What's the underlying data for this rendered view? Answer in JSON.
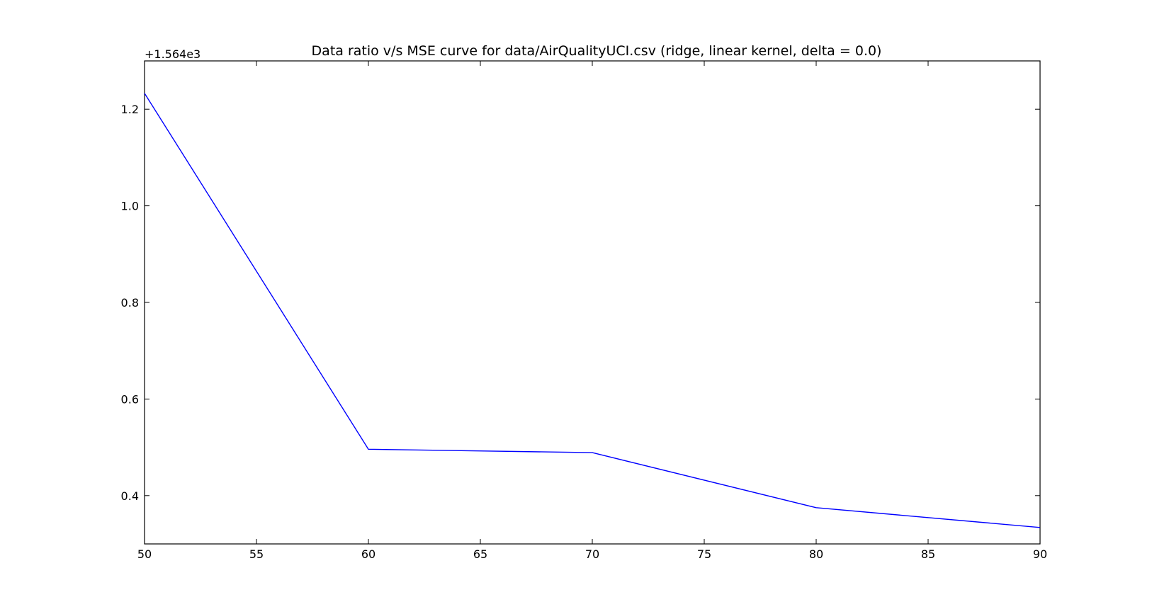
{
  "chart_data": {
    "type": "line",
    "title": "Data ratio v/s MSE curve for data/AirQualityUCI.csv (ridge, linear kernel, delta = 0.0)",
    "xlabel": "",
    "ylabel": "",
    "y_offset_label": "+1.564e3",
    "xlim": [
      50,
      90
    ],
    "ylim": [
      0.3,
      1.3
    ],
    "x_ticks": [
      50,
      55,
      60,
      65,
      70,
      75,
      80,
      85,
      90
    ],
    "x_tick_labels": [
      "50",
      "55",
      "60",
      "65",
      "70",
      "75",
      "80",
      "85",
      "90"
    ],
    "y_ticks": [
      0.4,
      0.6,
      0.8,
      1.0,
      1.2
    ],
    "y_tick_labels": [
      "0.4",
      "0.6",
      "0.8",
      "1.0",
      "1.2"
    ],
    "grid": false,
    "series": [
      {
        "color": "#0000ff",
        "x": [
          50,
          60,
          70,
          80,
          90
        ],
        "y": [
          1.233,
          0.496,
          0.489,
          0.375,
          0.334
        ]
      }
    ]
  }
}
